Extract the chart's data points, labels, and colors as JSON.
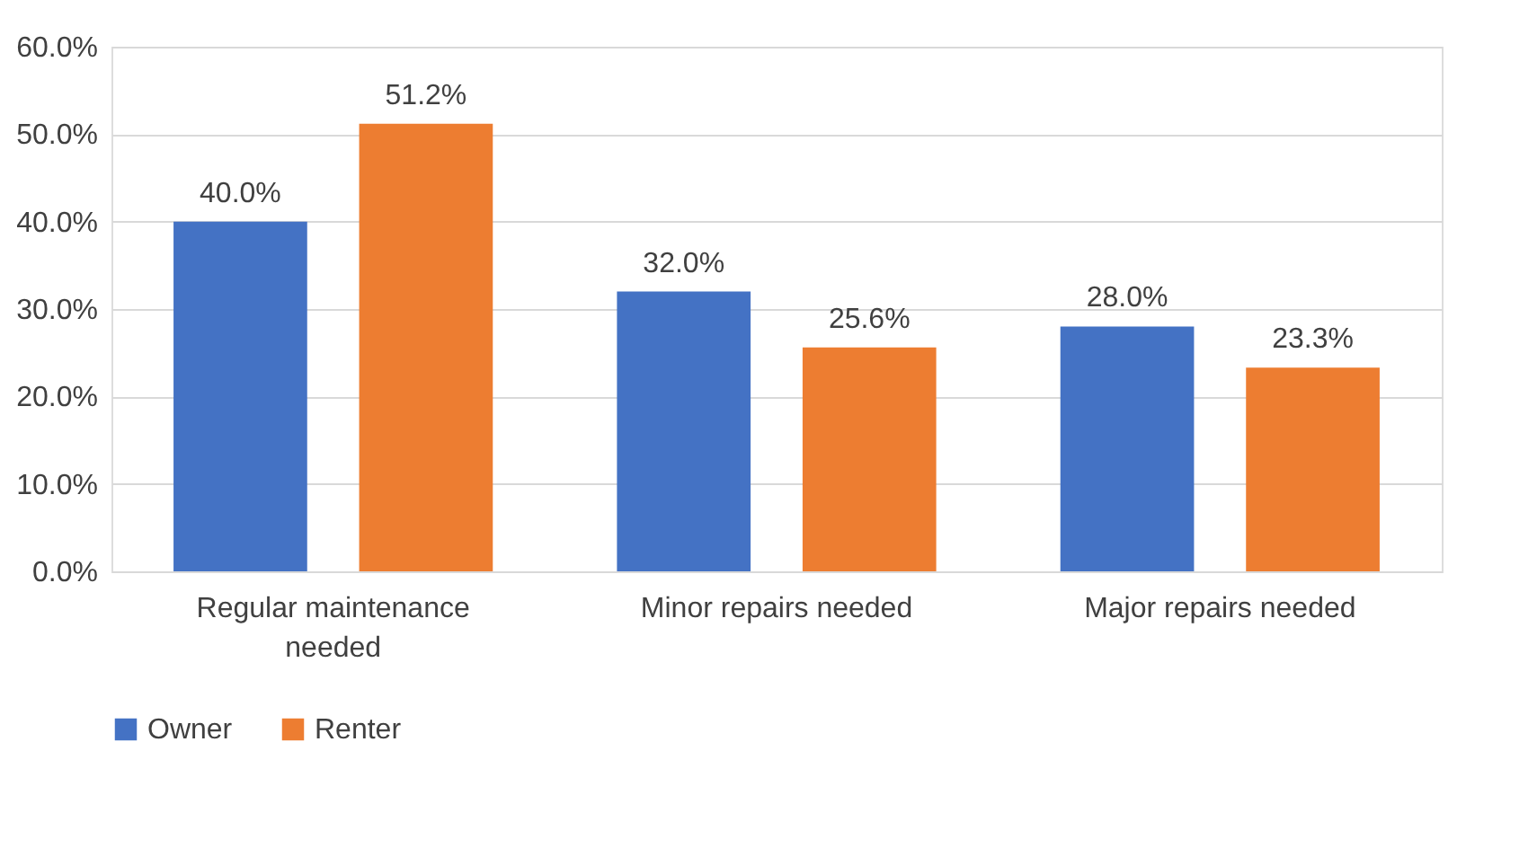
{
  "chart_data": {
    "type": "bar",
    "categories": [
      "Regular maintenance needed",
      "Minor repairs needed",
      "Major repairs needed"
    ],
    "series": [
      {
        "name": "Owner",
        "color": "#4472c4",
        "values": [
          40.0,
          32.0,
          28.0
        ],
        "value_labels": [
          "40.0%",
          "32.0%",
          "28.0%"
        ]
      },
      {
        "name": "Renter",
        "color": "#ed7d31",
        "values": [
          51.2,
          25.6,
          23.3
        ],
        "value_labels": [
          "51.2%",
          "25.6%",
          "23.3%"
        ]
      }
    ],
    "ylim": [
      0,
      60
    ],
    "yticks": [
      {
        "value": 0,
        "label": "0.0%"
      },
      {
        "value": 10,
        "label": "10.0%"
      },
      {
        "value": 20,
        "label": "20.0%"
      },
      {
        "value": 30,
        "label": "30.0%"
      },
      {
        "value": 40,
        "label": "40.0%"
      },
      {
        "value": 50,
        "label": "50.0%"
      },
      {
        "value": 60,
        "label": "60.0%"
      }
    ],
    "grid": "y",
    "legend": "bottom"
  }
}
